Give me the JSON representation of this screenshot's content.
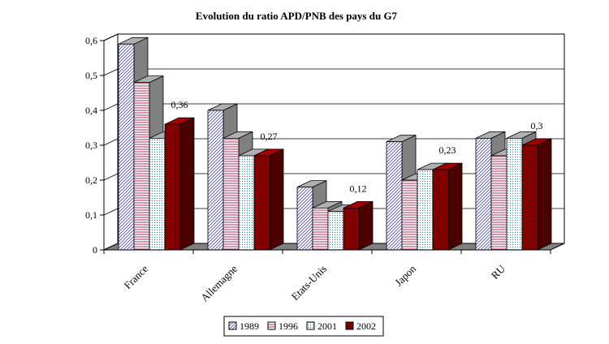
{
  "chart_data": {
    "type": "bar",
    "title": "Evolution du ratio APD/PNB des pays du G7",
    "categories": [
      "France",
      "Allemagne",
      "Etats-Unis",
      "Japon",
      "RU"
    ],
    "series": [
      {
        "name": "1989",
        "values": [
          0.59,
          0.4,
          0.18,
          0.31,
          0.32
        ],
        "fill": "pattern-diag",
        "color": "#ffffff",
        "pattern_color": "#4b4b9a"
      },
      {
        "name": "1996",
        "values": [
          0.48,
          0.32,
          0.12,
          0.2,
          0.27
        ],
        "fill": "pattern-horiz",
        "color": "#ffffff",
        "pattern_color": "#a01a4a"
      },
      {
        "name": "2001",
        "values": [
          0.32,
          0.27,
          0.11,
          0.23,
          0.32
        ],
        "fill": "pattern-dots",
        "color": "#ffffff",
        "pattern_color": "#0a8a8a"
      },
      {
        "name": "2002",
        "values": [
          0.36,
          0.27,
          0.12,
          0.23,
          0.3
        ],
        "fill": "solid",
        "color": "#800000",
        "pattern_color": "#800000"
      }
    ],
    "data_labels": [
      {
        "category": "France",
        "text": "0,36"
      },
      {
        "category": "Allemagne",
        "text": "0,27"
      },
      {
        "category": "Etats-Unis",
        "text": "0,12"
      },
      {
        "category": "Japon",
        "text": "0,23"
      },
      {
        "category": "RU",
        "text": "0,3"
      }
    ],
    "yticks": [
      "0",
      "0,1",
      "0,2",
      "0,3",
      "0,4",
      "0,5",
      "0,6"
    ],
    "ylim": [
      0,
      0.6
    ],
    "xlabel": "",
    "ylabel": "",
    "grid": true,
    "legend_position": "bottom",
    "three_d": true
  }
}
